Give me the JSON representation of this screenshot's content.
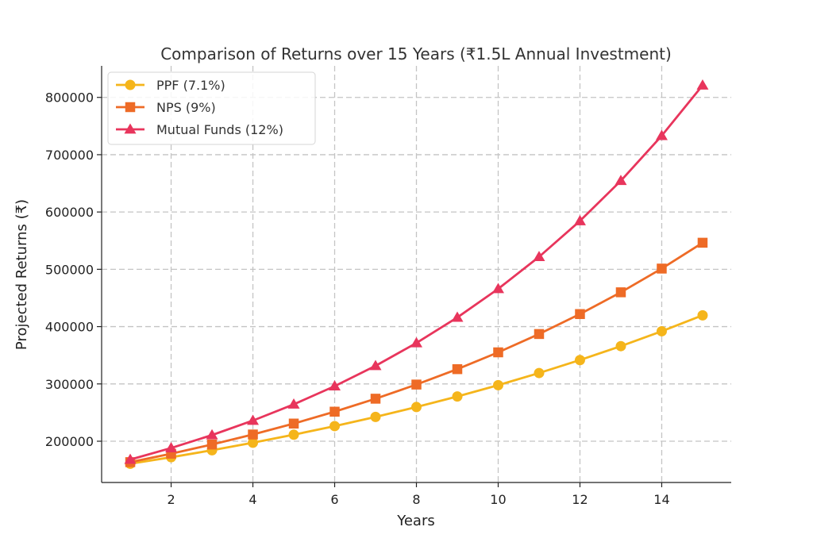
{
  "chart_data": {
    "type": "line",
    "title": "Comparison of Returns over 15 Years (₹1.5L Annual Investment)",
    "xlabel": "Years",
    "ylabel": "Projected Returns (₹)",
    "xlim": [
      0.3,
      15.7
    ],
    "ylim": [
      128000,
      855000
    ],
    "xticks": [
      2,
      4,
      6,
      8,
      10,
      12,
      14
    ],
    "yticks": [
      200000,
      300000,
      400000,
      500000,
      600000,
      700000,
      800000
    ],
    "grid": true,
    "legend_position": "top-left",
    "x": [
      1,
      2,
      3,
      4,
      5,
      6,
      7,
      8,
      9,
      10,
      11,
      12,
      13,
      14,
      15
    ],
    "series": [
      {
        "name": "PPF (7.1%)",
        "color": "#f5b51b",
        "marker": "circle",
        "values": [
          160650,
          172056,
          184272,
          197356,
          211368,
          226375,
          242448,
          259662,
          278098,
          297843,
          318990,
          341638,
          365895,
          391874,
          419697
        ]
      },
      {
        "name": "NPS (9%)",
        "color": "#ee6b26",
        "marker": "square",
        "values": [
          163500,
          178215,
          194254,
          211737,
          230793,
          251564,
          274205,
          298883,
          325782,
          355103,
          387062,
          421898,
          459869,
          501257,
          546370
        ]
      },
      {
        "name": "Mutual Funds (12%)",
        "color": "#e8355c",
        "marker": "triangle",
        "values": [
          168000,
          188160,
          210739,
          236028,
          264351,
          296074,
          331602,
          371394,
          415961,
          465877,
          521782,
          584396,
          654523,
          733066,
          821034
        ]
      }
    ]
  }
}
